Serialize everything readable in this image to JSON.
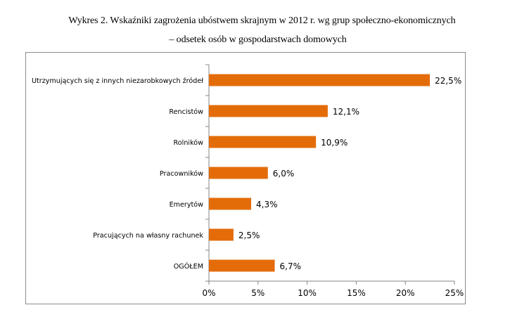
{
  "figure": {
    "title_line1": "Wykres 2. Wskaźniki zagrożenia ubóstwem skrajnym w 2012  r. wg grup społeczno-ekonomicznych",
    "title_line2": "– odsetek osób w gospodarstwach domowych"
  },
  "colors": {
    "bar": "#E36C09",
    "axis": "#868686",
    "text": "#000000"
  },
  "chart_data": {
    "type": "bar",
    "orientation": "horizontal",
    "title": "Wykres 2. Wskaźniki zagrożenia ubóstwem skrajnym w 2012  r. wg grup społeczno-ekonomicznych – odsetek osób w gospodarstwach domowych",
    "categories": [
      "Utrzymujących się z innych niezarobkowych źródeł",
      "Rencistów",
      "Rolników",
      "Pracowników",
      "Emerytów",
      "Pracujących na własny rachunek",
      "OGÓŁEM"
    ],
    "values": [
      22.5,
      12.1,
      10.9,
      6.0,
      4.3,
      2.5,
      6.7
    ],
    "value_labels": [
      "22,5%",
      "12,1%",
      "10,9%",
      "6,0%",
      "4,3%",
      "2,5%",
      "6,7%"
    ],
    "xlim": [
      0,
      25
    ],
    "xticks": [
      0,
      5,
      10,
      15,
      20,
      25
    ],
    "xtick_labels": [
      "0%",
      "5%",
      "10%",
      "15%",
      "20%",
      "25%"
    ],
    "xlabel": "",
    "ylabel": "",
    "grid": false,
    "legend": "none"
  }
}
